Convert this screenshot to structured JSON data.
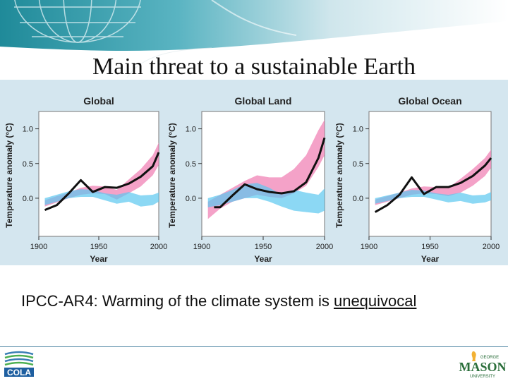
{
  "slide": {
    "title": "Main threat to a sustainable Earth",
    "caption_prefix": "IPCC-AR4: Warming of the climate system is ",
    "caption_emphasis": "unequivocal",
    "cola_logo_text": "COLA",
    "gmu_logo": {
      "top": "GEORGE",
      "main": "MASON",
      "bottom": "UNIVERSITY"
    }
  },
  "colors": {
    "observed": "#111111",
    "all_forcings_band": "#f07ab0",
    "natural_forcings_band": "#5bc8ef",
    "panel_background": "#d4e6ef"
  },
  "chart_data": [
    {
      "type": "line",
      "title": "Global",
      "xlabel": "Year",
      "ylabel": "Temperature anomaly (°C)",
      "xlim": [
        1900,
        2000
      ],
      "ylim": [
        -0.55,
        1.25
      ],
      "xticks": [
        1900,
        1950,
        2000
      ],
      "yticks": [
        0.0,
        0.5,
        1.0
      ],
      "ytick_labels": [
        "0.0",
        "0.5",
        "1.0"
      ],
      "series": [
        {
          "kind": "band",
          "style": "all_forcings_band",
          "x": [
            1905,
            1915,
            1925,
            1935,
            1945,
            1955,
            1965,
            1975,
            1985,
            1995,
            2000
          ],
          "lower": [
            -0.12,
            -0.06,
            0.0,
            0.05,
            0.07,
            0.06,
            -0.02,
            0.07,
            0.17,
            0.33,
            0.48
          ],
          "upper": [
            -0.03,
            0.03,
            0.08,
            0.15,
            0.18,
            0.17,
            0.12,
            0.27,
            0.42,
            0.62,
            0.8
          ]
        },
        {
          "kind": "band",
          "style": "natural_forcings_band",
          "x": [
            1905,
            1915,
            1925,
            1935,
            1945,
            1955,
            1965,
            1975,
            1985,
            1995,
            2000
          ],
          "lower": [
            -0.1,
            -0.05,
            0.0,
            0.02,
            0.02,
            -0.03,
            -0.08,
            -0.05,
            -0.12,
            -0.1,
            -0.05
          ],
          "upper": [
            0.0,
            0.05,
            0.1,
            0.13,
            0.12,
            0.07,
            0.05,
            0.09,
            0.04,
            0.05,
            0.08
          ]
        },
        {
          "kind": "line",
          "style": "observed",
          "x": [
            1905,
            1915,
            1925,
            1935,
            1945,
            1955,
            1965,
            1975,
            1985,
            1995,
            2000
          ],
          "y": [
            -0.17,
            -0.1,
            0.07,
            0.26,
            0.09,
            0.16,
            0.15,
            0.21,
            0.31,
            0.46,
            0.66
          ]
        }
      ]
    },
    {
      "type": "line",
      "title": "Global Land",
      "xlabel": "Year",
      "ylabel": "Temperature anomaly (°C)",
      "xlim": [
        1900,
        2000
      ],
      "ylim": [
        -0.55,
        1.25
      ],
      "xticks": [
        1900,
        1950,
        2000
      ],
      "yticks": [
        0.0,
        0.5,
        1.0
      ],
      "ytick_labels": [
        "0.0",
        "0.5",
        "1.0"
      ],
      "series": [
        {
          "kind": "band",
          "style": "all_forcings_band",
          "x": [
            1905,
            1915,
            1925,
            1935,
            1945,
            1955,
            1965,
            1975,
            1985,
            1995,
            2000
          ],
          "lower": [
            -0.3,
            -0.15,
            -0.05,
            0.0,
            0.05,
            0.02,
            0.0,
            0.07,
            0.18,
            0.45,
            0.62
          ],
          "upper": [
            -0.05,
            0.05,
            0.15,
            0.25,
            0.33,
            0.3,
            0.3,
            0.42,
            0.62,
            0.98,
            1.13
          ]
        },
        {
          "kind": "band",
          "style": "natural_forcings_band",
          "x": [
            1905,
            1915,
            1925,
            1935,
            1945,
            1955,
            1965,
            1975,
            1985,
            1995,
            2000
          ],
          "lower": [
            -0.13,
            -0.1,
            -0.05,
            0.0,
            0.0,
            -0.05,
            -0.12,
            -0.18,
            -0.2,
            -0.22,
            -0.18
          ],
          "upper": [
            0.0,
            0.05,
            0.12,
            0.2,
            0.22,
            0.15,
            0.05,
            0.12,
            0.08,
            0.05,
            0.14
          ]
        },
        {
          "kind": "line",
          "style": "observed",
          "x": [
            1910,
            1915,
            1925,
            1935,
            1945,
            1955,
            1965,
            1975,
            1985,
            1995,
            2000
          ],
          "y": [
            -0.13,
            -0.13,
            0.04,
            0.2,
            0.13,
            0.09,
            0.07,
            0.1,
            0.23,
            0.58,
            0.87
          ]
        }
      ]
    },
    {
      "type": "line",
      "title": "Global Ocean",
      "xlabel": "Year",
      "ylabel": "Temperature anomaly (°C)",
      "xlim": [
        1900,
        2000
      ],
      "ylim": [
        -0.55,
        1.25
      ],
      "xticks": [
        1900,
        1950,
        2000
      ],
      "yticks": [
        0.0,
        0.5,
        1.0
      ],
      "ytick_labels": [
        "0.0",
        "0.5",
        "1.0"
      ],
      "series": [
        {
          "kind": "band",
          "style": "all_forcings_band",
          "x": [
            1905,
            1915,
            1925,
            1935,
            1945,
            1955,
            1965,
            1975,
            1985,
            1995,
            2000
          ],
          "lower": [
            -0.1,
            -0.05,
            0.0,
            0.05,
            0.07,
            0.06,
            0.03,
            0.08,
            0.18,
            0.32,
            0.44
          ],
          "upper": [
            -0.02,
            0.03,
            0.08,
            0.14,
            0.17,
            0.16,
            0.15,
            0.28,
            0.42,
            0.58,
            0.7
          ]
        },
        {
          "kind": "band",
          "style": "natural_forcings_band",
          "x": [
            1905,
            1915,
            1925,
            1935,
            1945,
            1955,
            1965,
            1975,
            1985,
            1995,
            2000
          ],
          "lower": [
            -0.08,
            -0.04,
            0.0,
            0.02,
            0.02,
            -0.02,
            -0.06,
            -0.04,
            -0.08,
            -0.06,
            -0.03
          ],
          "upper": [
            0.0,
            0.04,
            0.08,
            0.12,
            0.11,
            0.07,
            0.05,
            0.08,
            0.04,
            0.05,
            0.09
          ]
        },
        {
          "kind": "line",
          "style": "observed",
          "x": [
            1905,
            1915,
            1925,
            1935,
            1945,
            1955,
            1965,
            1975,
            1985,
            1995,
            2000
          ],
          "y": [
            -0.2,
            -0.1,
            0.05,
            0.3,
            0.06,
            0.16,
            0.16,
            0.22,
            0.32,
            0.47,
            0.58
          ]
        }
      ]
    }
  ]
}
